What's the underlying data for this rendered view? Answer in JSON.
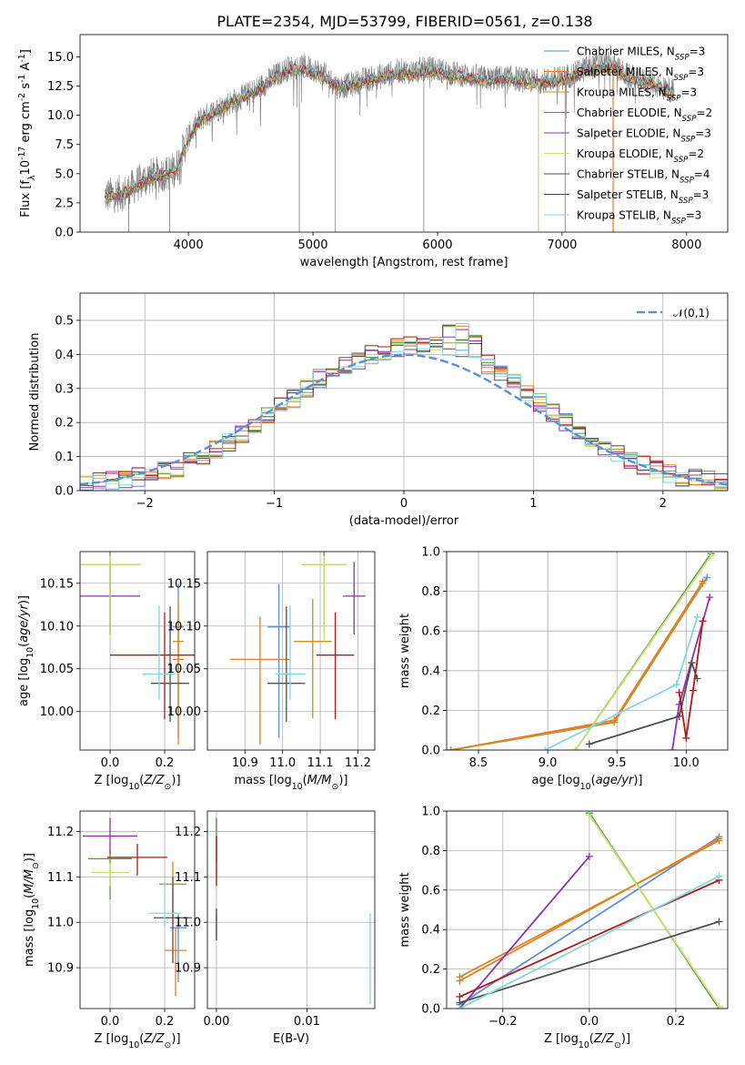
{
  "title": "PLATE=2354, MJD=53799, FIBERID=0561, z=0.138",
  "series": [
    {
      "name": "Chabrier MILES, N$_{SSP}$=3",
      "label": "Chabrier MILES, N",
      "sub": "SSP",
      "suffix": "=3",
      "color": "#5b8fd9"
    },
    {
      "name": "Salpeter MILES, N$_{SSP}$=3",
      "label": "Salpeter MILES, N",
      "sub": "SSP",
      "suffix": "=3",
      "color": "#e97a2a"
    },
    {
      "name": "Kroupa MILES, N$_{SSP}$=3",
      "label": "Kroupa MILES, N",
      "sub": "SSP",
      "suffix": "=3",
      "color": "#d38a1a"
    },
    {
      "name": "Chabrier ELODIE, N$_{SSP}$=2",
      "label": "Chabrier ELODIE, N",
      "sub": "SSP",
      "suffix": "=2",
      "color": "#4d9a4d"
    },
    {
      "name": "Salpeter ELODIE, N$_{SSP}$=3",
      "label": "Salpeter ELODIE, N",
      "sub": "SSP",
      "suffix": "=3",
      "color": "#9030b0"
    },
    {
      "name": "Kroupa ELODIE, N$_{SSP}$=2",
      "label": "Kroupa ELODIE, N",
      "sub": "SSP",
      "suffix": "=2",
      "color": "#c8e36a"
    },
    {
      "name": "Chabrier STELIB, N$_{SSP}$=4",
      "label": "Chabrier STELIB, N",
      "sub": "SSP",
      "suffix": "=4",
      "color": "#505050"
    },
    {
      "name": "Salpeter STELIB, N$_{SSP}$=3",
      "label": "Salpeter STELIB, N",
      "sub": "SSP",
      "suffix": "=3",
      "color": "#b01a1a"
    },
    {
      "name": "Kroupa STELIB, N$_{SSP}$=3",
      "label": "Kroupa STELIB, N",
      "sub": "SSP",
      "suffix": "=3",
      "color": "#80d8e0"
    }
  ],
  "chart_data": [
    {
      "id": "spectrum",
      "type": "line",
      "xlabel": "wavelength [Angstrom, rest frame]",
      "ylabel": "Flux [f$_\\lambda$10$^{-17}$ erg cm$^{-2}$ s$^{-1}$ A$^{-1}$]",
      "xlim": [
        3130,
        8330
      ],
      "ylim": [
        0,
        16.9
      ],
      "xticks": [
        4000,
        5000,
        6000,
        7000,
        8000
      ],
      "yticks": [
        0.0,
        2.5,
        5.0,
        7.5,
        10.0,
        12.5,
        15.0
      ],
      "grid": false,
      "legend_position": "upper right",
      "observed_color": "#808080",
      "x": [
        3330,
        3400,
        3500,
        3600,
        3700,
        3800,
        3900,
        4000,
        4100,
        4200,
        4300,
        4400,
        4500,
        4600,
        4700,
        4800,
        4900,
        5000,
        5100,
        5200,
        5300,
        5400,
        5500,
        5600,
        5700,
        5800,
        5900,
        6000,
        6100,
        6200,
        6300,
        6400,
        6500,
        6600,
        6700,
        6800,
        6900,
        7000,
        7100,
        7200,
        7300,
        7400,
        7500,
        7600,
        7700,
        7800,
        7900
      ],
      "flux": [
        3.1,
        3.2,
        3.4,
        4.2,
        4.8,
        5.0,
        5.4,
        8.2,
        9.7,
        10.3,
        10.9,
        11.4,
        11.9,
        12.6,
        13.4,
        14.0,
        14.2,
        14.0,
        13.4,
        12.4,
        12.6,
        13.0,
        13.2,
        13.5,
        13.8,
        13.7,
        14.0,
        13.9,
        13.6,
        13.5,
        13.3,
        13.1,
        13.2,
        13.2,
        13.0,
        12.9,
        13.0,
        13.2,
        13.5,
        14.1,
        14.3,
        14.4,
        13.5,
        13.0,
        12.9,
        12.4,
        12.0
      ],
      "model": [
        3.0,
        3.1,
        3.3,
        4.0,
        4.6,
        4.8,
        5.2,
        8.0,
        9.6,
        10.2,
        10.8,
        11.3,
        11.8,
        12.4,
        13.2,
        13.8,
        13.9,
        13.6,
        13.1,
        12.4,
        12.5,
        12.9,
        13.1,
        13.3,
        13.6,
        13.4,
        13.7,
        13.7,
        13.4,
        13.3,
        13.1,
        12.9,
        13.0,
        13.0,
        12.8,
        12.7,
        12.8,
        13.0,
        13.3,
        13.8,
        14.0,
        14.1,
        13.4,
        12.9,
        12.8,
        12.3,
        11.9
      ]
    },
    {
      "id": "residuals",
      "type": "step",
      "xlabel": "(data-model)/error",
      "ylabel": "Normed distribution",
      "xlim": [
        -2.5,
        2.5
      ],
      "ylim": [
        0,
        0.58
      ],
      "xticks": [
        -2,
        -1,
        0,
        1,
        2
      ],
      "yticks": [
        0.0,
        0.1,
        0.2,
        0.3,
        0.4,
        0.5
      ],
      "grid": true,
      "bins": [
        -2.5,
        -2.4,
        -2.3,
        -2.2,
        -2.1,
        -2.0,
        -1.9,
        -1.8,
        -1.7,
        -1.6,
        -1.5,
        -1.4,
        -1.3,
        -1.2,
        -1.1,
        -1.0,
        -0.9,
        -0.8,
        -0.7,
        -0.6,
        -0.5,
        -0.4,
        -0.3,
        -0.2,
        -0.1,
        0.0,
        0.1,
        0.2,
        0.3,
        0.4,
        0.5,
        0.6,
        0.7,
        0.8,
        0.9,
        1.0,
        1.1,
        1.2,
        1.3,
        1.4,
        1.5,
        1.6,
        1.7,
        1.8,
        1.9,
        2.0,
        2.1,
        2.2,
        2.3,
        2.4,
        2.5
      ],
      "hist_base": [
        0.02,
        0.025,
        0.03,
        0.035,
        0.04,
        0.05,
        0.06,
        0.065,
        0.085,
        0.1,
        0.12,
        0.14,
        0.165,
        0.19,
        0.22,
        0.245,
        0.27,
        0.3,
        0.33,
        0.35,
        0.37,
        0.385,
        0.4,
        0.41,
        0.42,
        0.425,
        0.43,
        0.43,
        0.42,
        0.41,
        0.39,
        0.37,
        0.35,
        0.32,
        0.29,
        0.26,
        0.23,
        0.2,
        0.175,
        0.15,
        0.125,
        0.105,
        0.09,
        0.075,
        0.06,
        0.05,
        0.04,
        0.035,
        0.03,
        0.025
      ],
      "reference_curve": {
        "label": "$\\mathcal{N}(0,1)$",
        "color": "#5b8fd9",
        "linestyle": "dashed"
      }
    },
    {
      "id": "age-vs-Z",
      "type": "errorbar",
      "xlabel": "Z [log$_{10}$($Z/Z_\\odot$)]",
      "ylabel": "age  [log$_{10}$($age/yr$)]",
      "xlim": [
        -0.11,
        0.31
      ],
      "ylim": [
        9.955,
        10.187
      ],
      "xticks": [
        0.0,
        0.2
      ],
      "yticks": [
        10.0,
        10.05,
        10.1,
        10.15
      ],
      "grid": true,
      "points": [
        {
          "x": 0.25,
          "y": 10.099,
          "xerr": 0.02,
          "yerr_lo": 0.13,
          "yerr_hi": 0.05
        },
        {
          "x": 0.25,
          "y": 10.061,
          "xerr": 0.02,
          "yerr_lo": 0.1,
          "yerr_hi": 0.05
        },
        {
          "x": 0.25,
          "y": 10.082,
          "xerr": 0.02,
          "yerr_lo": 0.09,
          "yerr_hi": 0.05
        },
        {
          "x": 0.0,
          "y": 10.172,
          "xerr": 0.115,
          "yerr_lo": 0.08,
          "yerr_hi": 0.03
        },
        {
          "x": 0.0,
          "y": 10.135,
          "xerr": 0.11,
          "yerr_lo": 0.045,
          "yerr_hi": 0.04
        },
        {
          "x": 0.0,
          "y": 10.172,
          "xerr": 0.115,
          "yerr_lo": 0.09,
          "yerr_hi": 0.01
        },
        {
          "x": 0.22,
          "y": 10.033,
          "xerr": 0.07,
          "yerr_lo": 0.045,
          "yerr_hi": 0.09
        },
        {
          "x": 0.2,
          "y": 10.066,
          "xerr": 0.2,
          "yerr_lo": 0.075,
          "yerr_hi": 0.05
        },
        {
          "x": 0.18,
          "y": 10.044,
          "xerr": 0.06,
          "yerr_lo": 0.03,
          "yerr_hi": 0.08
        }
      ]
    },
    {
      "id": "age-vs-mass",
      "type": "errorbar",
      "xlabel": "mass [log$_{10}$($M/M_\\odot$)]",
      "ylabel": "",
      "xlim": [
        10.8,
        11.245
      ],
      "ylim": [
        9.955,
        10.187
      ],
      "xticks": [
        10.9,
        11.0,
        11.1,
        11.2
      ],
      "yticks": [
        10.0,
        10.05,
        10.1,
        10.15
      ],
      "grid": true,
      "points": [
        {
          "x": 10.99,
          "y": 10.099,
          "xerr": 0.03,
          "yerr_lo": 0.13,
          "yerr_hi": 0.05
        },
        {
          "x": 10.94,
          "y": 10.061,
          "xerr": 0.08,
          "yerr_lo": 0.1,
          "yerr_hi": 0.05
        },
        {
          "x": 11.08,
          "y": 10.082,
          "xerr": 0.05,
          "yerr_lo": 0.09,
          "yerr_hi": 0.05
        },
        {
          "x": 11.11,
          "y": 10.172,
          "xerr": 0.06,
          "yerr_lo": 0.08,
          "yerr_hi": 0.03
        },
        {
          "x": 11.19,
          "y": 10.135,
          "xerr": 0.03,
          "yerr_lo": 0.045,
          "yerr_hi": 0.04
        },
        {
          "x": 11.11,
          "y": 10.172,
          "xerr": 0.06,
          "yerr_lo": 0.09,
          "yerr_hi": 0.01
        },
        {
          "x": 11.01,
          "y": 10.033,
          "xerr": 0.05,
          "yerr_lo": 0.045,
          "yerr_hi": 0.09
        },
        {
          "x": 11.14,
          "y": 10.066,
          "xerr": 0.05,
          "yerr_lo": 0.075,
          "yerr_hi": 0.05
        },
        {
          "x": 11.02,
          "y": 10.044,
          "xerr": 0.04,
          "yerr_lo": 0.03,
          "yerr_hi": 0.08
        }
      ]
    },
    {
      "id": "massweight-vs-age",
      "type": "line",
      "xlabel": "age  [log$_{10}$($age/yr$)]",
      "ylabel": "mass weight",
      "xlim": [
        8.27,
        10.3
      ],
      "ylim": [
        0,
        1.0
      ],
      "xticks": [
        8.5,
        9.0,
        9.5,
        10.0
      ],
      "yticks": [
        0.0,
        0.2,
        0.4,
        0.6,
        0.8,
        1.0
      ],
      "grid": true,
      "lines": [
        {
          "ages": [
            8.3,
            9.48,
            10.15
          ],
          "weights": [
            0.0,
            0.14,
            0.87
          ]
        },
        {
          "ages": [
            8.3,
            9.48,
            10.12
          ],
          "weights": [
            0.0,
            0.15,
            0.85
          ]
        },
        {
          "ages": [
            8.3,
            9.48,
            10.12
          ],
          "weights": [
            0.0,
            0.14,
            0.84
          ]
        },
        {
          "ages": [
            9.2,
            10.18
          ],
          "weights": [
            0.0,
            0.99
          ]
        },
        {
          "ages": [
            9.9,
            9.95,
            10.17
          ],
          "weights": [
            0.0,
            0.23,
            0.77
          ]
        },
        {
          "ages": [
            9.2,
            10.18
          ],
          "weights": [
            0.0,
            0.98
          ]
        },
        {
          "ages": [
            9.3,
            9.95,
            10.04,
            10.08
          ],
          "weights": [
            0.03,
            0.17,
            0.44,
            0.36
          ]
        },
        {
          "ages": [
            9.95,
            10.0,
            10.05,
            10.12
          ],
          "weights": [
            0.29,
            0.06,
            0.3,
            0.65
          ]
        },
        {
          "ages": [
            8.98,
            9.93,
            10.08
          ],
          "weights": [
            0.0,
            0.33,
            0.67
          ]
        }
      ]
    },
    {
      "id": "mass-vs-Z",
      "type": "errorbar",
      "xlabel": "Z [log$_{10}$($Z/Z_\\odot$)]",
      "ylabel": "mass [log$_{10}$($M/M_\\odot$)]",
      "xlim": [
        -0.11,
        0.31
      ],
      "ylim": [
        10.81,
        11.245
      ],
      "xticks": [
        0.0,
        0.2
      ],
      "yticks": [
        10.9,
        11.0,
        11.1,
        11.2
      ],
      "grid": true,
      "points": [
        {
          "x": 0.25,
          "y": 10.988,
          "xerr": 0.03,
          "yerr_lo": 0.12,
          "yerr_hi": 0.03
        },
        {
          "x": 0.24,
          "y": 10.938,
          "xerr": 0.04,
          "yerr_lo": 0.1,
          "yerr_hi": 0.05
        },
        {
          "x": 0.23,
          "y": 11.084,
          "xerr": 0.05,
          "yerr_lo": 0.09,
          "yerr_hi": 0.05
        },
        {
          "x": 0.0,
          "y": 11.14,
          "xerr": 0.08,
          "yerr_lo": 0.09,
          "yerr_hi": 0.02
        },
        {
          "x": 0.0,
          "y": 11.19,
          "xerr": 0.1,
          "yerr_lo": 0.04,
          "yerr_hi": 0.04
        },
        {
          "x": 0.0,
          "y": 11.11,
          "xerr": 0.07,
          "yerr_lo": 0.03,
          "yerr_hi": 0.02
        },
        {
          "x": 0.23,
          "y": 11.01,
          "xerr": 0.07,
          "yerr_lo": 0.1,
          "yerr_hi": 0.09
        },
        {
          "x": 0.1,
          "y": 11.143,
          "xerr": 0.11,
          "yerr_lo": 0.04,
          "yerr_hi": 0.03
        },
        {
          "x": 0.2,
          "y": 11.02,
          "xerr": 0.06,
          "yerr_lo": 0.03,
          "yerr_hi": 0.07
        }
      ]
    },
    {
      "id": "mass-vs-EBV",
      "type": "errorbar",
      "xlabel": "E(B-V)",
      "ylabel": "",
      "xlim": [
        -0.001,
        0.0175
      ],
      "ylim": [
        10.81,
        11.245
      ],
      "xticks": [
        0.0,
        0.01
      ],
      "yticks": [
        10.9,
        11.0,
        11.1,
        11.2
      ],
      "grid": true,
      "points": [
        {
          "x": 0.0,
          "y": 10.99,
          "xerr": 0,
          "yerr_lo": 0.03,
          "yerr_hi": 0.03
        },
        {
          "x": 0.0,
          "y": 11.0,
          "xerr": 0,
          "yerr_lo": 0.03,
          "yerr_hi": 0.03
        },
        {
          "x": 0.0,
          "y": 11.18,
          "xerr": 0,
          "yerr_lo": 0.05,
          "yerr_hi": 0.05
        },
        {
          "x": 0.0,
          "y": 11.19,
          "xerr": 0,
          "yerr_lo": 0.04,
          "yerr_hi": 0.04
        },
        {
          "x": 0.0,
          "y": 11.15,
          "xerr": 0,
          "yerr_lo": 0.06,
          "yerr_hi": 0.04
        },
        {
          "x": 0.0,
          "y": 11.1,
          "xerr": 0,
          "yerr_lo": 0.03,
          "yerr_hi": 0.03
        },
        {
          "x": 0.0,
          "y": 11.0,
          "xerr": 0,
          "yerr_lo": 0.04,
          "yerr_hi": 0.03
        },
        {
          "x": 0.0,
          "y": 11.14,
          "xerr": 0,
          "yerr_lo": 0.06,
          "yerr_hi": 0.05
        },
        {
          "x": 0.017,
          "y": 10.94,
          "xerr": 0,
          "yerr_lo": 0.12,
          "yerr_hi": 0.08
        }
      ]
    },
    {
      "id": "massweight-vs-Z",
      "type": "line",
      "xlabel": "Z [log$_{10}$($Z/Z_\\odot$)]",
      "ylabel": "mass weight",
      "xlim": [
        -0.33,
        0.32
      ],
      "ylim": [
        0,
        1.0
      ],
      "xticks": [
        -0.2,
        0.0,
        0.2
      ],
      "yticks": [
        0.0,
        0.2,
        0.4,
        0.6,
        0.8,
        1.0
      ],
      "grid": true,
      "lines": [
        {
          "Z": [
            -0.3,
            0.3
          ],
          "weights": [
            0.02,
            0.87
          ]
        },
        {
          "Z": [
            -0.3,
            0.3
          ],
          "weights": [
            0.14,
            0.86
          ]
        },
        {
          "Z": [
            -0.3,
            0.3
          ],
          "weights": [
            0.16,
            0.85
          ]
        },
        {
          "Z": [
            0.0,
            0.3
          ],
          "weights": [
            0.99,
            0.0
          ]
        },
        {
          "Z": [
            -0.3,
            0.0
          ],
          "weights": [
            0.0,
            0.77
          ]
        },
        {
          "Z": [
            0.0,
            0.3
          ],
          "weights": [
            0.98,
            0.01
          ]
        },
        {
          "Z": [
            -0.3,
            0.3
          ],
          "weights": [
            0.03,
            0.44
          ]
        },
        {
          "Z": [
            -0.3,
            0.3
          ],
          "weights": [
            0.06,
            0.65
          ]
        },
        {
          "Z": [
            -0.3,
            0.3
          ],
          "weights": [
            0.0,
            0.67
          ]
        }
      ]
    }
  ]
}
